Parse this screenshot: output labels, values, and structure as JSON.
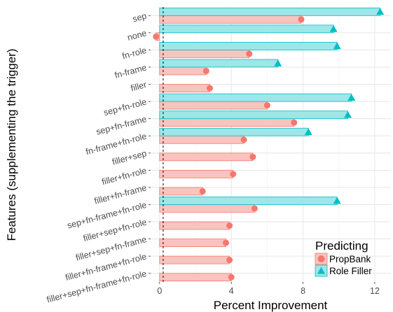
{
  "chart_data": {
    "type": "bar",
    "orientation": "horizontal",
    "xlabel": "Percent Improvement",
    "ylabel": "Features (supplementing the trigger)",
    "xlim": [
      -0.5,
      12.9
    ],
    "x_ticks": [
      0,
      4,
      8,
      12
    ],
    "reference_line_x": 0.2,
    "categories": [
      "sep",
      "none",
      "fn-role",
      "fn-frame",
      "filler",
      "sep+fn-role",
      "sep+fn-frame",
      "fn-frame+fn-role",
      "filler+sep",
      "filler+fn-role",
      "filler+fn-frame",
      "sep+fn-frame+fn-role",
      "filler+sep+fn-role",
      "filler+sep+fn-frame",
      "filler+fn-frame+fn-role",
      "filler+sep+fn-frame+fn-role"
    ],
    "series": [
      {
        "name": "PropBank",
        "color": "#F8766D",
        "fill": "#F8C4BF",
        "marker": "circle",
        "values": [
          7.9,
          -0.2,
          5.0,
          2.6,
          2.8,
          6.0,
          7.5,
          4.7,
          5.2,
          4.1,
          2.4,
          5.3,
          3.9,
          3.7,
          3.9,
          4.0
        ]
      },
      {
        "name": "Role Filler",
        "color": "#00BFC4",
        "fill": "#9EE6E8",
        "marker": "triangle",
        "values": [
          12.3,
          9.7,
          9.9,
          6.6,
          null,
          10.7,
          10.5,
          8.3,
          null,
          null,
          null,
          9.9,
          null,
          null,
          null,
          null
        ]
      }
    ],
    "legend": {
      "title": "Predicting",
      "position": "bottom-right"
    },
    "grid": true
  }
}
